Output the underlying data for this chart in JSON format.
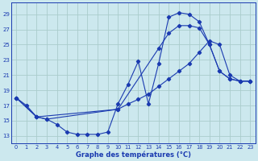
{
  "title": "Graphe des températures (°C)",
  "bg_color": "#cce8ee",
  "grid_color": "#aacccc",
  "line_color": "#1a3ab0",
  "xlim": [
    -0.5,
    23.5
  ],
  "ylim": [
    12.0,
    30.5
  ],
  "xticks": [
    0,
    1,
    2,
    3,
    4,
    5,
    6,
    7,
    8,
    9,
    10,
    11,
    12,
    13,
    14,
    15,
    16,
    17,
    18,
    19,
    20,
    21,
    22,
    23
  ],
  "yticks": [
    13,
    15,
    17,
    19,
    21,
    23,
    25,
    27,
    29
  ],
  "curve1_x": [
    0,
    1,
    2,
    3,
    4,
    5,
    6,
    7,
    8,
    9,
    10,
    11,
    12,
    13,
    14,
    15,
    16,
    17,
    18,
    19,
    20,
    21,
    22,
    23
  ],
  "curve1_y": [
    18.0,
    17.0,
    15.5,
    15.2,
    14.5,
    13.5,
    13.2,
    13.2,
    13.2,
    13.5,
    17.2,
    19.8,
    22.8,
    17.2,
    22.5,
    28.6,
    29.2,
    29.0,
    28.0,
    25.0,
    21.5,
    20.5,
    20.2,
    20.2
  ],
  "curve2_x": [
    0,
    2,
    3,
    10,
    11,
    12,
    13,
    14,
    15,
    16,
    17,
    18,
    19,
    20,
    21,
    22,
    23
  ],
  "curve2_y": [
    18.0,
    15.5,
    15.2,
    16.5,
    17.2,
    17.8,
    18.5,
    19.5,
    20.5,
    21.5,
    22.5,
    24.0,
    25.5,
    25.0,
    21.0,
    20.2,
    20.2
  ],
  "curve3_x": [
    0,
    2,
    10,
    14,
    15,
    16,
    17,
    18,
    19,
    20,
    21,
    22,
    23
  ],
  "curve3_y": [
    18.0,
    15.5,
    16.5,
    24.5,
    26.5,
    27.5,
    27.5,
    27.2,
    25.0,
    21.5,
    20.5,
    20.2,
    20.2
  ]
}
